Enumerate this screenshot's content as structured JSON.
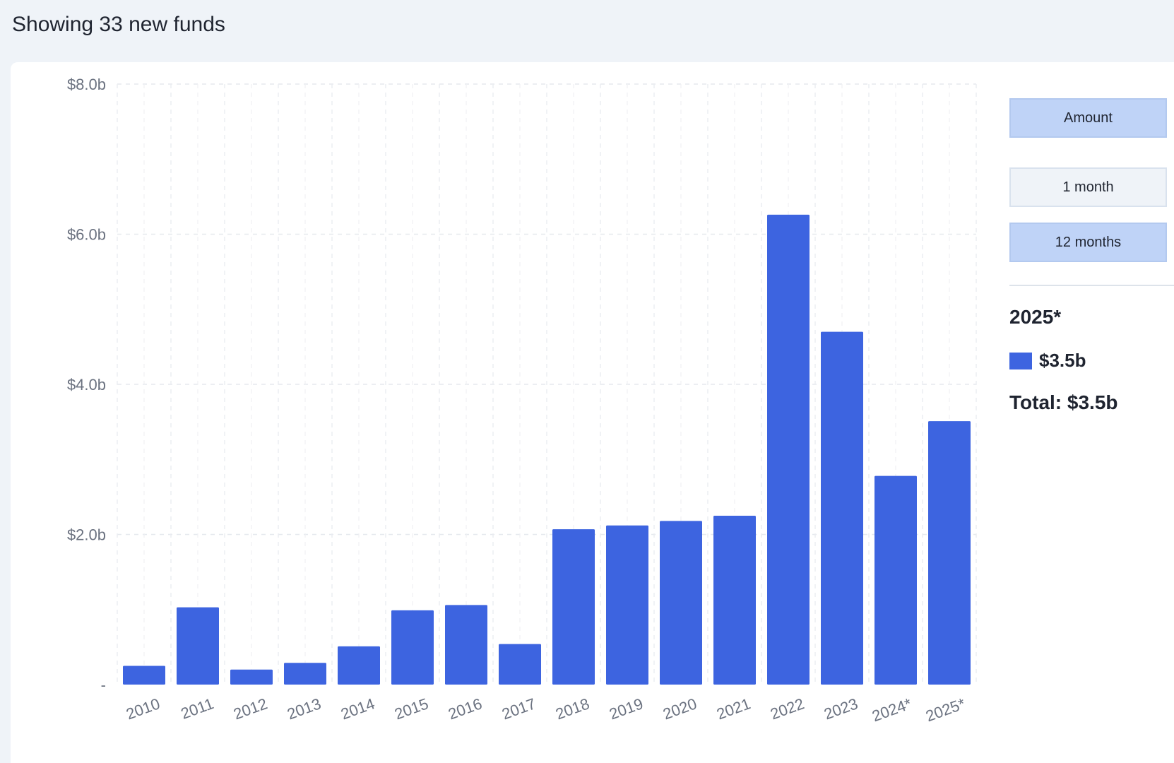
{
  "header": {
    "title": "Showing 33 new funds"
  },
  "controls": {
    "metric_button": "Amount",
    "period_buttons": [
      "1 month",
      "12 months"
    ],
    "active_period": "12 months"
  },
  "summary": {
    "year": "2025*",
    "value": "$3.5b",
    "total": "Total: $3.5b"
  },
  "colors": {
    "bar": "#3d64e0",
    "active_button": "#bfd3f7"
  },
  "chart_data": {
    "type": "bar",
    "categories": [
      "2010",
      "2011",
      "2012",
      "2013",
      "2014",
      "2015",
      "2016",
      "2017",
      "2018",
      "2019",
      "2020",
      "2021",
      "2022",
      "2023",
      "2024*",
      "2025*"
    ],
    "values": [
      0.25,
      1.03,
      0.2,
      0.29,
      0.51,
      0.99,
      1.06,
      0.54,
      2.07,
      2.12,
      2.18,
      2.25,
      6.26,
      4.7,
      2.78,
      3.51
    ],
    "ylim": [
      0,
      8
    ],
    "yticks": [
      0,
      2,
      4,
      6,
      8
    ],
    "ytick_labels": [
      "-",
      "$2.0b",
      "$4.0b",
      "$6.0b",
      "$8.0b"
    ],
    "grid": true
  }
}
